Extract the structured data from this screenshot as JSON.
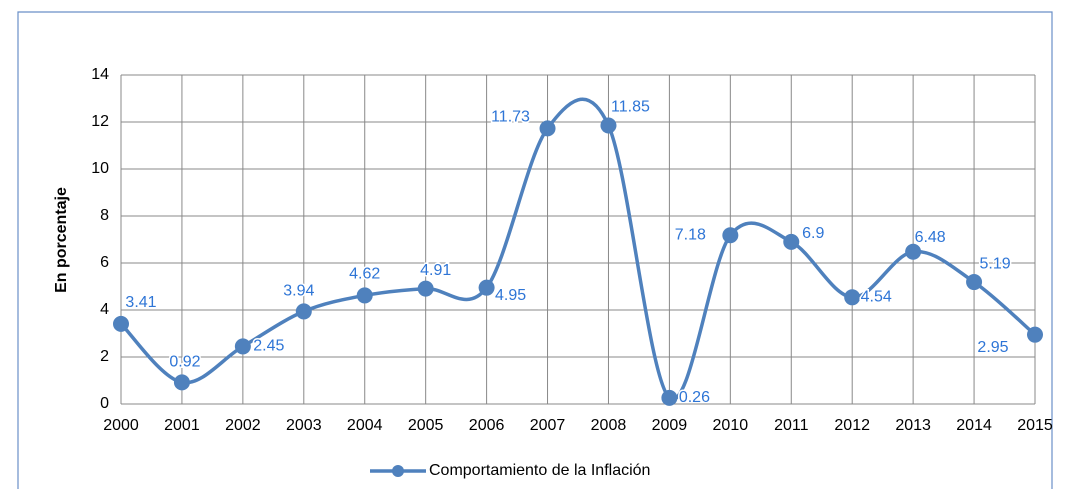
{
  "chart_data": {
    "type": "line",
    "categories": [
      "2000",
      "2001",
      "2002",
      "2003",
      "2004",
      "2005",
      "2006",
      "2007",
      "2008",
      "2009",
      "2010",
      "2011",
      "2012",
      "2013",
      "2014",
      "2015"
    ],
    "series": [
      {
        "name": "Comportamiento de la Inflación",
        "color": "#4f81bd",
        "values": [
          3.41,
          0.92,
          2.45,
          3.94,
          4.62,
          4.91,
          4.95,
          11.73,
          11.85,
          0.26,
          7.18,
          6.9,
          4.54,
          6.48,
          5.19,
          2.95
        ]
      }
    ],
    "y_label": "En porcentaje",
    "ylim": [
      0,
      14
    ],
    "yticks": [
      0,
      2,
      4,
      6,
      8,
      10,
      12,
      14
    ],
    "grid": true,
    "smooth": true,
    "legend": "bottom"
  }
}
